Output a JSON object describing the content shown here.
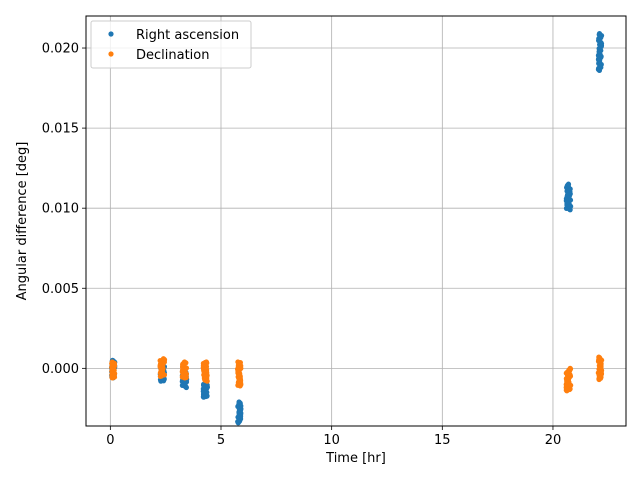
{
  "chart_data": {
    "type": "scatter",
    "title": "",
    "xlabel": "Time [hr]",
    "ylabel": "Angular difference [deg]",
    "xlim": [
      -1.1,
      23.3
    ],
    "ylim": [
      -0.0036,
      0.022
    ],
    "x_ticks": [
      0,
      5,
      10,
      15,
      20
    ],
    "x_tick_labels": [
      "0",
      "5",
      "10",
      "15",
      "20"
    ],
    "y_ticks": [
      0.0,
      0.005,
      0.01,
      0.015,
      0.02
    ],
    "y_tick_labels": [
      "0.000",
      "0.005",
      "0.010",
      "0.015",
      "0.020"
    ],
    "grid": true,
    "legend_position": "top-left",
    "series": [
      {
        "name": "Right ascension",
        "color": "#1f77b4",
        "clusters": [
          {
            "x": [
              0.05,
              0.2
            ],
            "y": [
              -0.0006,
              0.0005
            ]
          },
          {
            "x": [
              2.25,
              2.45
            ],
            "y": [
              -0.0008,
              0.0001
            ]
          },
          {
            "x": [
              3.25,
              3.45
            ],
            "y": [
              -0.0012,
              -0.0002
            ]
          },
          {
            "x": [
              4.2,
              4.4
            ],
            "y": [
              -0.0018,
              -0.001
            ]
          },
          {
            "x": [
              5.75,
              5.9
            ],
            "y": [
              -0.0034,
              -0.0021
            ]
          },
          {
            "x": [
              20.6,
              20.8
            ],
            "y": [
              0.0099,
              0.0115
            ]
          },
          {
            "x": [
              22.05,
              22.2
            ],
            "y": [
              0.0186,
              0.0209
            ]
          }
        ]
      },
      {
        "name": "Declination",
        "color": "#ff7f0e",
        "clusters": [
          {
            "x": [
              0.05,
              0.2
            ],
            "y": [
              -0.0006,
              0.0004
            ]
          },
          {
            "x": [
              2.25,
              2.45
            ],
            "y": [
              -0.0005,
              0.0006
            ]
          },
          {
            "x": [
              3.25,
              3.45
            ],
            "y": [
              -0.0006,
              0.0004
            ]
          },
          {
            "x": [
              4.2,
              4.4
            ],
            "y": [
              -0.0008,
              0.0004
            ]
          },
          {
            "x": [
              5.75,
              5.9
            ],
            "y": [
              -0.0011,
              0.0004
            ]
          },
          {
            "x": [
              20.6,
              20.8
            ],
            "y": [
              -0.0014,
              0.0
            ]
          },
          {
            "x": [
              22.05,
              22.2
            ],
            "y": [
              -0.0007,
              0.0007
            ]
          }
        ]
      }
    ]
  }
}
